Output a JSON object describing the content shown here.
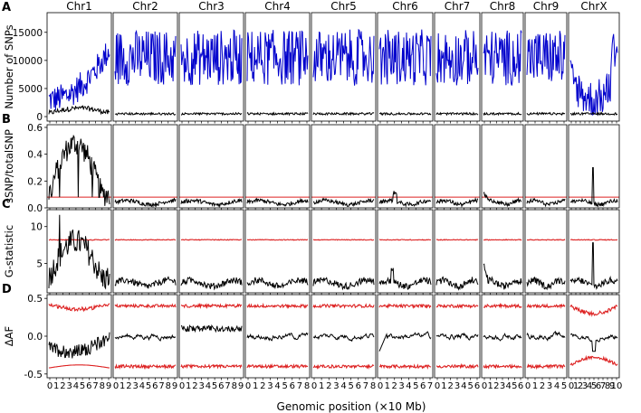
{
  "chart_data": {
    "type": "line",
    "xlabel": "Genomic position (×10 Mb)",
    "chromosomes": [
      {
        "name": "Chr1",
        "ticks": [
          "0",
          "1",
          "2",
          "3",
          "4",
          "5",
          "6",
          "7",
          "8",
          "9"
        ]
      },
      {
        "name": "Chr2",
        "ticks": [
          "0",
          "1",
          "2",
          "3",
          "4",
          "5",
          "6",
          "7",
          "8",
          "9"
        ]
      },
      {
        "name": "Chr3",
        "ticks": [
          "0",
          "1",
          "2",
          "3",
          "4",
          "5",
          "6",
          "7",
          "8",
          "9"
        ]
      },
      {
        "name": "Chr4",
        "ticks": [
          "0",
          "1",
          "2",
          "3",
          "4",
          "5",
          "6",
          "7",
          "8"
        ]
      },
      {
        "name": "Chr5",
        "ticks": [
          "0",
          "1",
          "2",
          "3",
          "4",
          "5",
          "6",
          "7",
          "8"
        ]
      },
      {
        "name": "Chr6",
        "ticks": [
          "0",
          "1",
          "2",
          "3",
          "4",
          "5",
          "6",
          "7"
        ]
      },
      {
        "name": "Chr7",
        "ticks": [
          "0",
          "1",
          "2",
          "3",
          "4",
          "5",
          "6"
        ]
      },
      {
        "name": "Chr8",
        "ticks": [
          "0",
          "1",
          "2",
          "3",
          "4",
          "5",
          "6"
        ]
      },
      {
        "name": "Chr9",
        "ticks": [
          "0",
          "1",
          "2",
          "3",
          "4",
          "5"
        ]
      },
      {
        "name": "ChrX",
        "ticks": [
          "0",
          "1",
          "2",
          "3",
          "4",
          "5",
          "6",
          "7",
          "8",
          "9",
          "10"
        ]
      }
    ],
    "rows": [
      {
        "id": "A",
        "ylabel": "Number of SNPs",
        "ylim": [
          -800,
          18500
        ],
        "yticks": [
          0,
          5000,
          10000,
          15000
        ],
        "ytick_labels": [
          "0",
          "5000",
          "10000",
          "15000"
        ]
      },
      {
        "id": "B",
        "ylabel": "sSNP/totalSNP",
        "ylim": [
          0.0,
          0.62
        ],
        "yticks": [
          0.0,
          0.2,
          0.4,
          0.6
        ],
        "ytick_labels": [
          "0.0",
          "0.2",
          "0.4",
          "0.6"
        ]
      },
      {
        "id": "C",
        "ylabel": "G-statistic",
        "ylim": [
          1.0,
          12.3
        ],
        "yticks": [
          5,
          10
        ],
        "ytick_labels": [
          "5",
          "10"
        ]
      },
      {
        "id": "D",
        "ylabel": "ΔAF",
        "ylim": [
          -0.55,
          0.55
        ],
        "yticks": [
          -0.5,
          0.0,
          0.5
        ],
        "ytick_labels": [
          "-0.5",
          "0.0",
          "0.5"
        ]
      }
    ],
    "colors": {
      "total_snps": "#0000cc",
      "value": "#000000",
      "threshold": "#dd2222"
    },
    "series_description": {
      "A": {
        "blue": "total SNPs per window",
        "black": "sSNPs per window"
      },
      "B": {
        "black": "sSNP/totalSNP",
        "red": "threshold ≈ 0.08"
      },
      "C": {
        "black": "G-statistic",
        "red": "threshold ≈ 8.2"
      },
      "D": {
        "black": "ΔAF",
        "red": "95% confidence bounds ≈ ±0.4"
      }
    }
  }
}
